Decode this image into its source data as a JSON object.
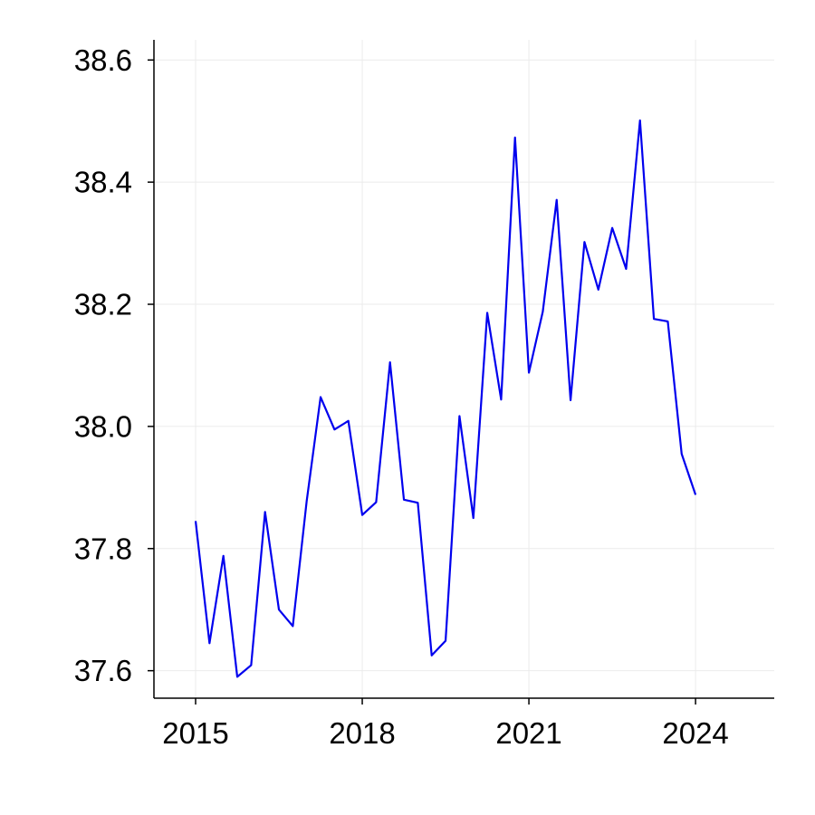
{
  "chart_data": {
    "type": "line",
    "title": "",
    "xlabel": "",
    "ylabel": "",
    "x": [
      "2015-01",
      "2015-04",
      "2015-07",
      "2015-10",
      "2016-01",
      "2016-04",
      "2016-07",
      "2016-10",
      "2017-01",
      "2017-04",
      "2017-07",
      "2017-10",
      "2018-01",
      "2018-04",
      "2018-07",
      "2018-10",
      "2019-01",
      "2019-04",
      "2019-07",
      "2019-10",
      "2020-01",
      "2020-04",
      "2020-07",
      "2020-10",
      "2021-01",
      "2021-04",
      "2021-07",
      "2021-10",
      "2022-01",
      "2022-04",
      "2022-07",
      "2022-10",
      "2023-01",
      "2023-04",
      "2023-07",
      "2023-10",
      "2024-01"
    ],
    "series": [
      {
        "values": [
          37.845,
          37.645,
          37.788,
          37.59,
          37.609,
          37.86,
          37.7,
          37.673,
          37.878,
          38.048,
          37.995,
          38.009,
          37.855,
          37.876,
          38.105,
          37.88,
          37.875,
          37.625,
          37.649,
          38.017,
          37.85,
          38.186,
          38.044,
          38.473,
          38.088,
          38.188,
          38.371,
          38.043,
          38.302,
          38.224,
          38.325,
          38.258,
          38.501,
          38.176,
          38.172,
          37.955,
          37.888
        ],
        "color": "#0000ee"
      }
    ],
    "xlim": [
      "2014-04",
      "2025-06"
    ],
    "ylim": [
      37.555,
      38.633
    ],
    "x_ticks": [
      "2015",
      "2018",
      "2021",
      "2024"
    ],
    "y_ticks": [
      "37.6",
      "37.8",
      "38.0",
      "38.2",
      "38.4",
      "38.6"
    ],
    "grid": true
  }
}
